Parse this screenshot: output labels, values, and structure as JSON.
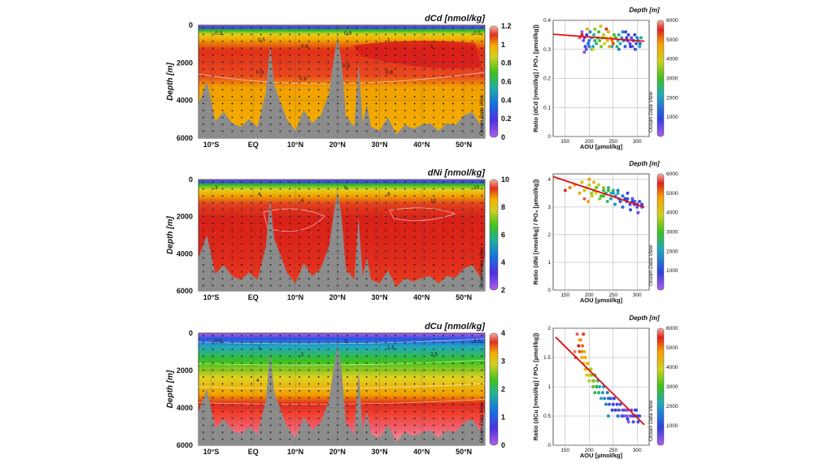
{
  "sections": {
    "panels": [
      {
        "title": "dCd [nmol/kg]",
        "colorbar_ticks": [
          "0",
          "0.2",
          "0.4",
          "0.6",
          "0.8",
          "1",
          "1.2"
        ],
        "contour_labels": [
          "0.3",
          "0.5",
          "0.6",
          "0.9",
          "1",
          "1",
          "0.5",
          "0.9",
          "0.9",
          "0.8",
          "0.8"
        ]
      },
      {
        "title": "dNi [nmol/kg]",
        "colorbar_ticks": [
          "2",
          "4",
          "6",
          "8",
          "10"
        ],
        "contour_labels": [
          "3",
          "4",
          "6",
          "9",
          "8",
          "10",
          "10"
        ]
      },
      {
        "title": "dCu [nmol/kg]",
        "colorbar_ticks": [
          "0",
          "1",
          "2",
          "3",
          "4"
        ],
        "contour_labels": [
          "0.5",
          "1",
          "1",
          "2",
          "1.5",
          "2.5",
          "3.5",
          "4"
        ]
      }
    ],
    "ylabel": "Depth [m]",
    "yticks": [
      "0",
      "2000",
      "4000",
      "6000"
    ],
    "xticks": [
      "10°S",
      "EQ",
      "10°N",
      "20°N",
      "30°N",
      "40°N",
      "50°N"
    ],
    "watermark": "Ocean Data View"
  },
  "colors": {
    "low": "#b060e8",
    "mid1": "#2a4ad8",
    "mid2": "#22b0a0",
    "mid3": "#3ac020",
    "mid4": "#e0d020",
    "mid5": "#f5a800",
    "high": "#e01c1c",
    "bathymetry": "#8c8c8c",
    "regression": "#e01010"
  },
  "chart_data": [
    {
      "type": "scatter",
      "panel": "dCd",
      "ylabel": "Ratio (dCd [nmol/kg] / PO₄ [µmol/kg])",
      "xlabel": "AOU [µmol/kg]",
      "colorbar_title": "Depth [m]",
      "xlim": [
        125,
        325
      ],
      "ylim": [
        0,
        0.4
      ],
      "xticks": [
        150,
        200,
        250,
        300
      ],
      "yticks": [
        0,
        0.1,
        0.2,
        0.3,
        0.4
      ],
      "colorbar_ticks": [
        1000,
        2000,
        3000,
        4000,
        5000,
        6000
      ],
      "regression": {
        "x": [
          125,
          315
        ],
        "y": [
          0.352,
          0.328
        ]
      },
      "x": [
        185,
        188,
        190,
        192,
        195,
        198,
        200,
        202,
        205,
        208,
        210,
        212,
        215,
        218,
        220,
        222,
        225,
        228,
        230,
        232,
        235,
        238,
        240,
        242,
        245,
        248,
        250,
        252,
        255,
        258,
        260,
        262,
        265,
        268,
        270,
        272,
        275,
        278,
        280,
        282,
        285,
        288,
        290,
        292,
        295,
        298,
        300,
        302,
        305,
        308,
        190,
        194,
        200,
        206,
        212,
        224,
        236,
        248,
        262,
        276,
        286,
        296,
        306,
        180,
        185,
        196,
        208
      ],
      "y": [
        0.36,
        0.33,
        0.34,
        0.31,
        0.35,
        0.32,
        0.33,
        0.36,
        0.34,
        0.31,
        0.35,
        0.33,
        0.32,
        0.34,
        0.36,
        0.33,
        0.31,
        0.34,
        0.35,
        0.32,
        0.34,
        0.33,
        0.36,
        0.31,
        0.34,
        0.33,
        0.32,
        0.35,
        0.34,
        0.31,
        0.33,
        0.35,
        0.32,
        0.34,
        0.36,
        0.33,
        0.31,
        0.34,
        0.33,
        0.35,
        0.32,
        0.34,
        0.31,
        0.33,
        0.35,
        0.32,
        0.34,
        0.33,
        0.31,
        0.34,
        0.29,
        0.3,
        0.31,
        0.3,
        0.37,
        0.38,
        0.37,
        0.31,
        0.3,
        0.36,
        0.31,
        0.3,
        0.32,
        0.34,
        0.35,
        0.37,
        0.3
      ],
      "depth": [
        200,
        400,
        600,
        800,
        1000,
        1200,
        1400,
        1600,
        1800,
        2000,
        2200,
        2400,
        2600,
        2800,
        3000,
        3200,
        3400,
        3600,
        3800,
        4000,
        4200,
        4400,
        4600,
        4800,
        5000,
        5200,
        5400,
        3000,
        2800,
        2600,
        2400,
        2200,
        2000,
        1800,
        1600,
        1400,
        1200,
        1000,
        900,
        800,
        700,
        600,
        500,
        800,
        1000,
        1200,
        1500,
        1800,
        2000,
        2200,
        300,
        500,
        1500,
        2500,
        3500,
        4500,
        5500,
        2000,
        1500,
        1000,
        900,
        1100,
        1300,
        5800,
        5600,
        4800,
        4000
      ]
    },
    {
      "type": "scatter",
      "panel": "dNi",
      "ylabel": "Ratio (dNi [nmol/kg] / PO₄ [µmol/kg])",
      "xlabel": "AOU [µmol/kg]",
      "colorbar_title": "Depth [m]",
      "xlim": [
        125,
        325
      ],
      "ylim": [
        0,
        4.2
      ],
      "xticks": [
        150,
        200,
        250,
        300
      ],
      "yticks": [
        0,
        1,
        2,
        3,
        4
      ],
      "colorbar_ticks": [
        1000,
        2000,
        3000,
        4000,
        5000,
        6000
      ],
      "regression": {
        "x": [
          125,
          315
        ],
        "y": [
          4.1,
          3.0
        ]
      },
      "x": [
        150,
        160,
        170,
        180,
        185,
        190,
        195,
        200,
        205,
        210,
        215,
        220,
        225,
        230,
        235,
        240,
        245,
        250,
        255,
        260,
        265,
        270,
        275,
        280,
        285,
        290,
        295,
        300,
        305,
        310,
        190,
        198,
        206,
        214,
        222,
        230,
        238,
        246,
        254,
        262,
        270,
        278,
        286,
        294,
        302,
        310,
        200,
        210,
        220,
        230,
        240,
        250,
        260,
        270,
        280,
        290,
        300
      ],
      "y": [
        3.6,
        3.7,
        3.8,
        3.5,
        3.9,
        3.6,
        3.7,
        3.8,
        3.5,
        3.6,
        3.7,
        3.8,
        3.4,
        3.6,
        3.5,
        3.7,
        3.3,
        3.5,
        3.4,
        3.6,
        3.2,
        3.4,
        3.3,
        3.5,
        3.1,
        3.3,
        3.2,
        3.0,
        3.2,
        3.1,
        3.3,
        3.2,
        3.4,
        3.5,
        3.3,
        3.4,
        3.2,
        3.5,
        3.1,
        3.3,
        3.0,
        3.2,
        2.9,
        3.1,
        2.8,
        3.0,
        4.0,
        3.9,
        3.8,
        3.7,
        3.6,
        3.6,
        3.5,
        3.4,
        3.3,
        3.2,
        3.1
      ],
      "depth": [
        5500,
        5200,
        5000,
        4800,
        4500,
        4200,
        4000,
        3800,
        3600,
        3400,
        3200,
        3000,
        2800,
        2600,
        2400,
        2200,
        2000,
        1800,
        1600,
        1400,
        1200,
        1000,
        900,
        800,
        700,
        600,
        500,
        500,
        700,
        900,
        5800,
        5000,
        4500,
        4000,
        3500,
        3000,
        2500,
        2000,
        1800,
        1600,
        1400,
        1200,
        1000,
        800,
        600,
        500,
        5000,
        4500,
        4000,
        3500,
        3000,
        2500,
        2000,
        1500,
        1200,
        1000,
        800
      ]
    },
    {
      "type": "scatter",
      "panel": "dCu",
      "ylabel": "Ratio (dCu [nmol/kg] / PO₄ [µmol/kg])",
      "xlabel": "AOU [µmol/kg]",
      "colorbar_title": "Depth [m]",
      "xlim": [
        125,
        325
      ],
      "ylim": [
        0,
        2
      ],
      "xticks": [
        150,
        200,
        250,
        300
      ],
      "yticks": [
        0,
        0.5,
        1,
        1.5,
        2
      ],
      "colorbar_ticks": [
        1000,
        2000,
        3000,
        4000,
        5000,
        6000
      ],
      "regression": {
        "x": [
          130,
          315
        ],
        "y": [
          1.85,
          0.35
        ]
      },
      "x": [
        175,
        178,
        180,
        182,
        185,
        188,
        190,
        192,
        195,
        198,
        200,
        202,
        205,
        208,
        210,
        212,
        215,
        218,
        220,
        222,
        225,
        228,
        230,
        232,
        235,
        238,
        240,
        242,
        245,
        248,
        250,
        252,
        255,
        258,
        260,
        262,
        265,
        268,
        270,
        272,
        275,
        278,
        280,
        282,
        285,
        288,
        290,
        292,
        295,
        298,
        300,
        302,
        305,
        180,
        184,
        188,
        192,
        196,
        200,
        204,
        208,
        212,
        216,
        220,
        170,
        172,
        186,
        194,
        240,
        260,
        280,
        296
      ],
      "y": [
        1.9,
        1.7,
        1.6,
        1.8,
        1.5,
        1.4,
        1.6,
        1.3,
        1.2,
        1.4,
        1.1,
        1.3,
        1.2,
        1.0,
        1.1,
        0.9,
        1.0,
        1.1,
        0.9,
        1.0,
        0.8,
        0.9,
        1.0,
        0.8,
        0.7,
        0.9,
        0.8,
        0.7,
        0.8,
        0.6,
        0.7,
        0.8,
        0.6,
        0.7,
        0.5,
        0.6,
        0.7,
        0.5,
        0.6,
        0.5,
        0.6,
        0.5,
        0.6,
        0.4,
        0.5,
        0.6,
        0.5,
        0.4,
        0.5,
        0.6,
        0.5,
        0.4,
        0.5,
        1.8,
        1.6,
        1.9,
        1.5,
        1.4,
        1.2,
        1.3,
        1.1,
        1.2,
        1.0,
        0.9,
        1.6,
        1.5,
        1.7,
        1.3,
        0.5,
        0.5,
        0.45,
        0.6
      ],
      "depth": [
        5800,
        5600,
        5400,
        5200,
        5000,
        4800,
        4600,
        4400,
        4200,
        4000,
        3800,
        3600,
        3400,
        3200,
        3000,
        2800,
        2600,
        2400,
        2200,
        2000,
        2000,
        1800,
        1800,
        1600,
        1600,
        1400,
        1400,
        1200,
        1200,
        1000,
        1000,
        900,
        900,
        800,
        800,
        700,
        700,
        600,
        600,
        500,
        500,
        400,
        400,
        300,
        300,
        500,
        600,
        700,
        800,
        900,
        1000,
        1100,
        1200,
        5000,
        5200,
        5500,
        4800,
        4500,
        4200,
        3800,
        3500,
        3000,
        2800,
        2500,
        5900,
        5700,
        5300,
        4600,
        1800,
        1500,
        1000,
        800
      ]
    }
  ]
}
